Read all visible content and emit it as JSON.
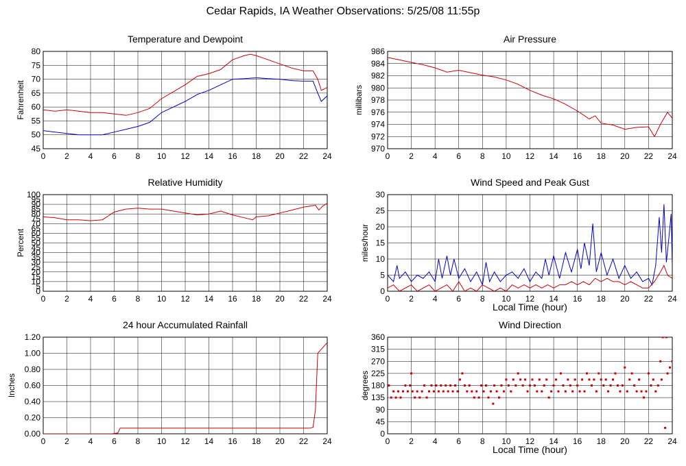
{
  "title": "Cedar Rapids, IA Weather Observations: 5/25/08 11:55p",
  "colors": {
    "red": "#cc0000",
    "blue": "#0000cc",
    "grid": "#000000"
  },
  "chart_data": [
    {
      "id": "temp",
      "type": "line",
      "title": "Temperature and Dewpoint",
      "xlabel": "",
      "ylabel": "Fahrenheit",
      "xlim": [
        0,
        24
      ],
      "ylim": [
        45,
        80
      ],
      "xticks": [
        0,
        2,
        4,
        6,
        8,
        10,
        12,
        14,
        16,
        18,
        20,
        22,
        24
      ],
      "yticks": [
        45,
        50,
        55,
        60,
        65,
        70,
        75,
        80
      ],
      "ytick_labels": [
        "45",
        "50",
        "55",
        "60",
        "65",
        "70",
        "75",
        "80"
      ],
      "grid": true,
      "series": [
        {
          "color": "#cc0000",
          "style": "line",
          "x": [
            0,
            1,
            2,
            3,
            4,
            5,
            6,
            7,
            8,
            9,
            10,
            11,
            12,
            13,
            14,
            15,
            16,
            17,
            17.5,
            18,
            19,
            20,
            21,
            22,
            22.8,
            23.2,
            23.5,
            24
          ],
          "y": [
            59,
            58.5,
            59,
            58.5,
            58,
            58,
            57.5,
            57,
            58,
            59.5,
            63,
            65.5,
            68,
            71,
            72,
            73.5,
            77,
            78.5,
            79,
            78.5,
            77,
            75.5,
            74,
            73,
            73,
            70,
            66,
            67
          ]
        },
        {
          "color": "#0000cc",
          "style": "line",
          "x": [
            0,
            1,
            2,
            3,
            4,
            5,
            6,
            7,
            8,
            9,
            10,
            11,
            12,
            13,
            14,
            15,
            16,
            17,
            18,
            19,
            20,
            21,
            22,
            22.8,
            23.2,
            23.5,
            24
          ],
          "y": [
            51.5,
            51,
            50.5,
            50,
            50,
            50,
            51,
            52,
            53,
            54.5,
            58,
            60,
            62,
            64.5,
            66,
            68,
            70,
            70.2,
            70.5,
            70.2,
            70,
            69.5,
            69.3,
            69.3,
            65,
            62,
            64
          ]
        }
      ]
    },
    {
      "id": "pressure",
      "type": "line",
      "title": "Air Pressure",
      "xlabel": "",
      "ylabel": "millibars",
      "xlim": [
        0,
        24
      ],
      "ylim": [
        970,
        986
      ],
      "xticks": [
        0,
        2,
        4,
        6,
        8,
        10,
        12,
        14,
        16,
        18,
        20,
        22,
        24
      ],
      "yticks": [
        970,
        972,
        974,
        976,
        978,
        980,
        982,
        984,
        986
      ],
      "ytick_labels": [
        "970",
        "972",
        "974",
        "976",
        "978",
        "980",
        "982",
        "984",
        "986"
      ],
      "grid": true,
      "series": [
        {
          "color": "#cc0000",
          "style": "line",
          "x": [
            0,
            1,
            2,
            3,
            4,
            5,
            6,
            7,
            8,
            9,
            10,
            11,
            12,
            13,
            14,
            15,
            16,
            17,
            17.5,
            18,
            19,
            20,
            21,
            22,
            22.5,
            23,
            23.3,
            23.6,
            24
          ],
          "y": [
            985,
            984.6,
            984.2,
            983.8,
            983.3,
            982.6,
            982.9,
            982.5,
            982.1,
            981.8,
            981.3,
            980.6,
            979.6,
            978.8,
            978.2,
            977.3,
            976.2,
            974.9,
            975.4,
            974.2,
            973.9,
            973.2,
            973.5,
            973.6,
            972.0,
            974.0,
            975.0,
            976.0,
            975.0
          ]
        }
      ]
    },
    {
      "id": "humidity",
      "type": "line",
      "title": "Relative Humidity",
      "xlabel": "",
      "ylabel": "Percent",
      "xlim": [
        0,
        24
      ],
      "ylim": [
        0,
        100
      ],
      "xticks": [
        0,
        2,
        4,
        6,
        8,
        10,
        12,
        14,
        16,
        18,
        20,
        22,
        24
      ],
      "yticks": [
        0,
        10,
        20,
        30,
        40,
        50,
        60,
        70,
        80,
        90,
        100
      ],
      "ytick_labels": [
        "0",
        "5",
        "10",
        "15",
        "20",
        "25",
        "30",
        "35",
        "40",
        "45",
        "50",
        "55",
        "60",
        "65",
        "70",
        "75",
        "80",
        "85",
        "90",
        "95",
        "100"
      ],
      "ytick_values": [
        0,
        5,
        10,
        15,
        20,
        25,
        30,
        35,
        40,
        45,
        50,
        55,
        60,
        65,
        70,
        75,
        80,
        85,
        90,
        95,
        100
      ],
      "grid": true,
      "series": [
        {
          "color": "#cc0000",
          "style": "line",
          "x": [
            0,
            1,
            2,
            3,
            4,
            5,
            5.5,
            6,
            7,
            8,
            9,
            10,
            11,
            12,
            13,
            14,
            15,
            16,
            17,
            17.7,
            18,
            19,
            20,
            21,
            22,
            23,
            23.3,
            23.6,
            24
          ],
          "y": [
            77,
            76,
            74,
            74,
            73,
            74,
            78,
            82,
            85,
            86,
            85,
            85,
            83,
            81,
            79,
            80,
            83,
            79,
            76,
            74,
            77,
            78,
            81,
            84,
            87,
            89,
            84,
            88,
            91
          ]
        }
      ]
    },
    {
      "id": "wind",
      "type": "line",
      "title": "Wind Speed and Peak Gust",
      "xlabel": "Local Time (hour)",
      "ylabel": "miles/hour",
      "xlim": [
        0,
        24
      ],
      "ylim": [
        0,
        30
      ],
      "xticks": [
        0,
        2,
        4,
        6,
        8,
        10,
        12,
        14,
        16,
        18,
        20,
        22,
        24
      ],
      "yticks": [
        0,
        5,
        10,
        15,
        20,
        25,
        30
      ],
      "ytick_labels": [
        "0",
        "5",
        "10",
        "15",
        "20",
        "25",
        "30"
      ],
      "grid": true,
      "series": [
        {
          "color": "#0000cc",
          "style": "line",
          "x": [
            0,
            0.5,
            0.8,
            1,
            1.5,
            2,
            2.5,
            3,
            3.5,
            4,
            4.3,
            4.6,
            5,
            5.3,
            5.6,
            6,
            6.5,
            7,
            7.5,
            8,
            8.3,
            8.6,
            9,
            9.5,
            10,
            10.5,
            11,
            11.5,
            12,
            12.5,
            13,
            13.3,
            13.6,
            14,
            14.5,
            15,
            15.5,
            16,
            16.3,
            16.6,
            17,
            17.3,
            17.6,
            18,
            18.5,
            19,
            19.5,
            20,
            20.5,
            21,
            21.5,
            22,
            22.3,
            22.6,
            22.9,
            23.1,
            23.3,
            23.5,
            23.7,
            23.9,
            24
          ],
          "y": [
            5,
            3,
            8,
            4,
            6,
            3,
            5,
            4,
            6,
            3,
            10,
            4,
            11,
            5,
            10,
            4,
            7,
            3,
            6,
            2,
            9,
            3,
            6,
            3,
            5,
            6,
            4,
            7,
            3,
            6,
            4,
            10,
            5,
            11,
            4,
            12,
            6,
            13,
            7,
            15,
            8,
            21,
            6,
            12,
            5,
            10,
            4,
            8,
            4,
            6,
            3,
            4,
            2,
            8,
            23,
            12,
            27,
            9,
            16,
            24,
            8
          ]
        },
        {
          "color": "#cc0000",
          "style": "line",
          "x": [
            0,
            0.5,
            1,
            1.5,
            2,
            2.5,
            3,
            3.5,
            4,
            4.5,
            5,
            5.5,
            6,
            6.5,
            7,
            7.5,
            8,
            8.5,
            9,
            9.5,
            10,
            10.5,
            11,
            11.5,
            12,
            12.5,
            13,
            13.5,
            14,
            14.5,
            15,
            15.5,
            16,
            16.5,
            17,
            17.5,
            18,
            18.5,
            19,
            19.5,
            20,
            20.5,
            21,
            21.5,
            22,
            22.5,
            23,
            23.3,
            23.6,
            24
          ],
          "y": [
            1,
            2,
            0,
            1,
            2,
            0,
            1,
            2,
            0,
            1,
            2,
            0,
            3,
            0,
            1,
            0,
            2,
            1,
            0,
            1,
            0,
            2,
            1,
            2,
            1,
            2,
            1,
            2,
            1,
            2,
            2,
            3,
            2,
            3,
            2,
            4,
            3,
            4,
            3,
            3,
            2,
            3,
            2,
            1,
            1,
            3,
            6,
            8,
            5,
            4
          ]
        }
      ]
    },
    {
      "id": "rain",
      "type": "line",
      "title": "24 hour Accumulated Rainfall",
      "xlabel": "",
      "ylabel": "Inches",
      "xlim": [
        0,
        24
      ],
      "ylim": [
        0,
        1.2
      ],
      "xticks": [
        0,
        2,
        4,
        6,
        8,
        10,
        12,
        14,
        16,
        18,
        20,
        22,
        24
      ],
      "yticks": [
        0,
        0.2,
        0.4,
        0.6,
        0.8,
        1.0,
        1.2
      ],
      "ytick_labels": [
        "0.00",
        "0.20",
        "0.40",
        "0.60",
        "0.80",
        "1.00",
        "1.20"
      ],
      "grid": true,
      "series": [
        {
          "color": "#cc0000",
          "style": "line",
          "x": [
            0,
            5.8,
            6.3,
            6.5,
            22.5,
            22.8,
            23.0,
            23.2,
            23.5,
            23.8,
            24
          ],
          "y": [
            0,
            0,
            0.01,
            0.07,
            0.07,
            0.08,
            0.3,
            1.0,
            1.05,
            1.1,
            1.13
          ]
        }
      ]
    },
    {
      "id": "direction",
      "type": "scatter",
      "title": "Wind Direction",
      "xlabel": "Local Time (hour)",
      "ylabel": "degrees",
      "xlim": [
        0,
        24
      ],
      "ylim": [
        0,
        360
      ],
      "xticks": [
        0,
        2,
        4,
        6,
        8,
        10,
        12,
        14,
        16,
        18,
        20,
        22,
        24
      ],
      "yticks": [
        0,
        45,
        90,
        135,
        180,
        225,
        270,
        315,
        360
      ],
      "ytick_labels": [
        "0",
        "45",
        "90",
        "135",
        "180",
        "225",
        "270",
        "315",
        "360"
      ],
      "grid": true,
      "series": [
        {
          "color": "#cc0000",
          "style": "points",
          "x": [
            0.1,
            0.3,
            0.5,
            0.7,
            0.9,
            1.1,
            1.3,
            1.5,
            1.7,
            1.9,
            2.0,
            2.1,
            2.3,
            2.5,
            2.7,
            2.9,
            3.1,
            3.3,
            3.5,
            3.7,
            3.9,
            4.1,
            4.3,
            4.5,
            4.7,
            4.9,
            5.1,
            5.3,
            5.5,
            5.7,
            5.9,
            6.1,
            6.3,
            6.5,
            6.7,
            6.9,
            7.1,
            7.3,
            7.5,
            7.7,
            7.9,
            8.1,
            8.3,
            8.5,
            8.7,
            8.9,
            9.0,
            9.2,
            9.4,
            9.6,
            9.8,
            10.0,
            10.2,
            10.4,
            10.6,
            10.8,
            11.0,
            11.2,
            11.4,
            11.6,
            11.8,
            12.0,
            12.2,
            12.4,
            12.6,
            12.8,
            13.0,
            13.2,
            13.4,
            13.6,
            13.8,
            14.0,
            14.2,
            14.4,
            14.6,
            14.8,
            15.0,
            15.2,
            15.4,
            15.6,
            15.8,
            16.0,
            16.2,
            16.4,
            16.6,
            16.8,
            17.0,
            17.2,
            17.4,
            17.6,
            17.8,
            18.0,
            18.2,
            18.4,
            18.6,
            18.8,
            19.0,
            19.2,
            19.4,
            19.6,
            19.8,
            20.0,
            20.2,
            20.4,
            20.6,
            20.8,
            21.0,
            21.2,
            21.4,
            21.6,
            21.8,
            22.0,
            22.2,
            22.4,
            22.6,
            22.8,
            23.0,
            23.1,
            23.2,
            23.4,
            23.5,
            23.6,
            23.8,
            24.0
          ],
          "y": [
            180,
            135,
            158,
            135,
            158,
            135,
            158,
            180,
            158,
            180,
            225,
            158,
            135,
            158,
            135,
            158,
            180,
            135,
            158,
            180,
            158,
            180,
            158,
            180,
            158,
            180,
            158,
            180,
            158,
            180,
            158,
            202,
            225,
            180,
            158,
            180,
            158,
            135,
            158,
            135,
            180,
            158,
            180,
            135,
            158,
            112,
            180,
            158,
            135,
            180,
            158,
            202,
            180,
            158,
            202,
            180,
            225,
            202,
            180,
            202,
            158,
            180,
            202,
            180,
            158,
            202,
            158,
            180,
            202,
            135,
            158,
            180,
            202,
            158,
            225,
            180,
            158,
            202,
            180,
            158,
            202,
            180,
            158,
            202,
            158,
            225,
            202,
            180,
            202,
            158,
            225,
            202,
            180,
            202,
            158,
            180,
            202,
            225,
            180,
            158,
            180,
            247,
            158,
            202,
            225,
            180,
            158,
            202,
            158,
            135,
            158,
            225,
            180,
            202,
            158,
            180,
            270,
            202,
            360,
            22,
            360,
            225,
            247,
            270
          ]
        }
      ]
    }
  ]
}
